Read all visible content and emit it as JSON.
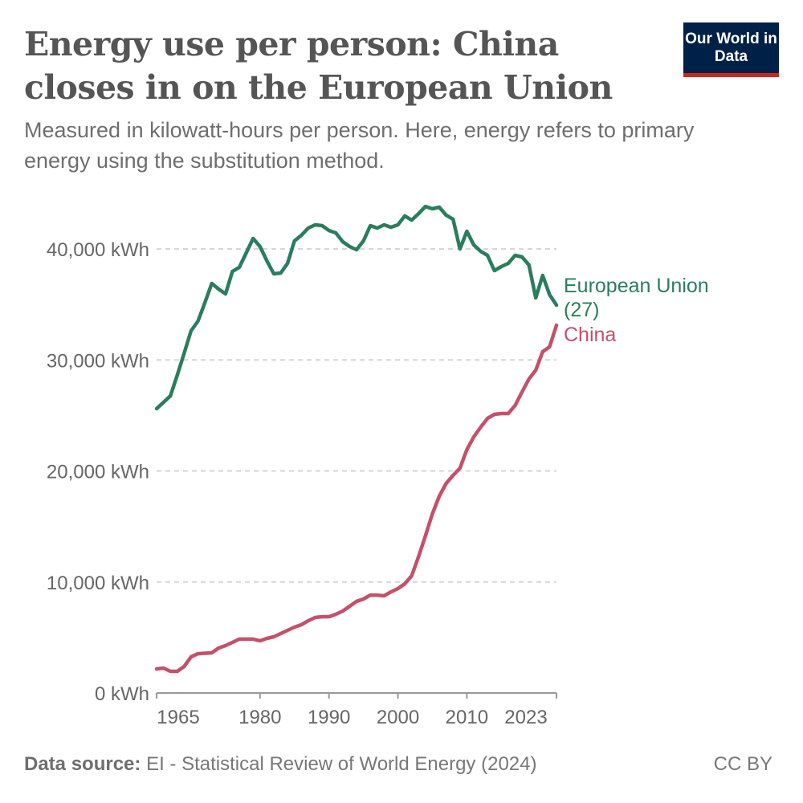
{
  "header": {
    "title": "Energy use per person: China closes in on the European Union",
    "subtitle": "Measured in kilowatt-hours per person. Here, energy refers to primary energy using the substitution method.",
    "logo_text": "Our World in Data"
  },
  "footer": {
    "source_label": "Data source:",
    "source_text": "EI - Statistical Review of World Energy (2024)",
    "license": "CC BY"
  },
  "colors": {
    "eu": "#2b7d5c",
    "china": "#c4506a",
    "logo_bg": "#002147",
    "logo_accent": "#ce261e"
  },
  "chart_data": {
    "type": "line",
    "title": "Energy use per person: China closes in on the European Union",
    "subtitle": "Measured in kilowatt-hours per person. Here, energy refers to primary energy using the substitution method.",
    "xlim": [
      1965,
      2023
    ],
    "ylim": [
      0,
      44000
    ],
    "x_ticks": [
      1965,
      1980,
      1990,
      2000,
      2010,
      2023
    ],
    "y_ticks": [
      0,
      10000,
      20000,
      30000,
      40000
    ],
    "y_tick_labels": [
      "0 kWh",
      "10,000 kWh",
      "20,000 kWh",
      "30,000 kWh",
      "40,000 kWh"
    ],
    "grid": "horizontal dashed",
    "legend": "line-end labels",
    "x": [
      1965,
      1966,
      1967,
      1968,
      1969,
      1970,
      1971,
      1972,
      1973,
      1974,
      1975,
      1976,
      1977,
      1978,
      1979,
      1980,
      1981,
      1982,
      1983,
      1984,
      1985,
      1986,
      1987,
      1988,
      1989,
      1990,
      1991,
      1992,
      1993,
      1994,
      1995,
      1996,
      1997,
      1998,
      1999,
      2000,
      2001,
      2002,
      2003,
      2004,
      2005,
      2006,
      2007,
      2008,
      2009,
      2010,
      2011,
      2012,
      2013,
      2014,
      2015,
      2016,
      2017,
      2018,
      2019,
      2020,
      2021,
      2022,
      2023
    ],
    "series": [
      {
        "name": "European Union (27)",
        "values": [
          25610,
          26180,
          26760,
          28640,
          30600,
          32620,
          33490,
          35150,
          36890,
          36380,
          35950,
          37970,
          38340,
          39640,
          40940,
          40220,
          38920,
          37760,
          37830,
          38700,
          40720,
          41230,
          41880,
          42170,
          42100,
          41660,
          41450,
          40650,
          40220,
          39930,
          40720,
          42100,
          41880,
          42170,
          41950,
          42170,
          42970,
          42600,
          43180,
          43830,
          43620,
          43760,
          43040,
          42680,
          40000,
          41590,
          40360,
          39780,
          39420,
          38050,
          38410,
          38700,
          39420,
          39280,
          38550,
          35590,
          37610,
          35880,
          34940
        ]
      },
      {
        "name": "China",
        "values": [
          2170,
          2240,
          1950,
          1950,
          2390,
          3250,
          3540,
          3580,
          3620,
          4050,
          4270,
          4560,
          4850,
          4850,
          4850,
          4700,
          4920,
          5060,
          5350,
          5640,
          5930,
          6150,
          6510,
          6800,
          6870,
          6870,
          7090,
          7380,
          7810,
          8250,
          8460,
          8820,
          8820,
          8750,
          9110,
          9400,
          9840,
          10560,
          12300,
          14180,
          16130,
          17720,
          18880,
          19600,
          20250,
          21920,
          23070,
          23940,
          24740,
          25100,
          25170,
          25170,
          25900,
          27120,
          28280,
          29080,
          30740,
          31180,
          33130
        ]
      }
    ]
  }
}
